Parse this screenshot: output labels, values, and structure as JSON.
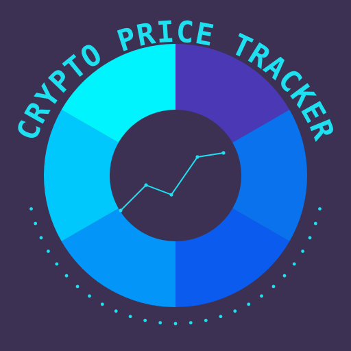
{
  "logo": {
    "title": "CRYPTO PRICE TRACKER",
    "icons": [
      "donut-ring-icon",
      "trend-line-icon"
    ],
    "colors": {
      "background": "#3c3153",
      "text": "#1ee0f0",
      "dots": "#1ee0f0",
      "line": "#1ee0f0",
      "segments": [
        "#4a38b4",
        "#0a72ec",
        "#0a5bee",
        "#0396f8",
        "#00c8fc",
        "#00f4fd"
      ]
    },
    "segment_count": 6,
    "dot_count": 27
  }
}
